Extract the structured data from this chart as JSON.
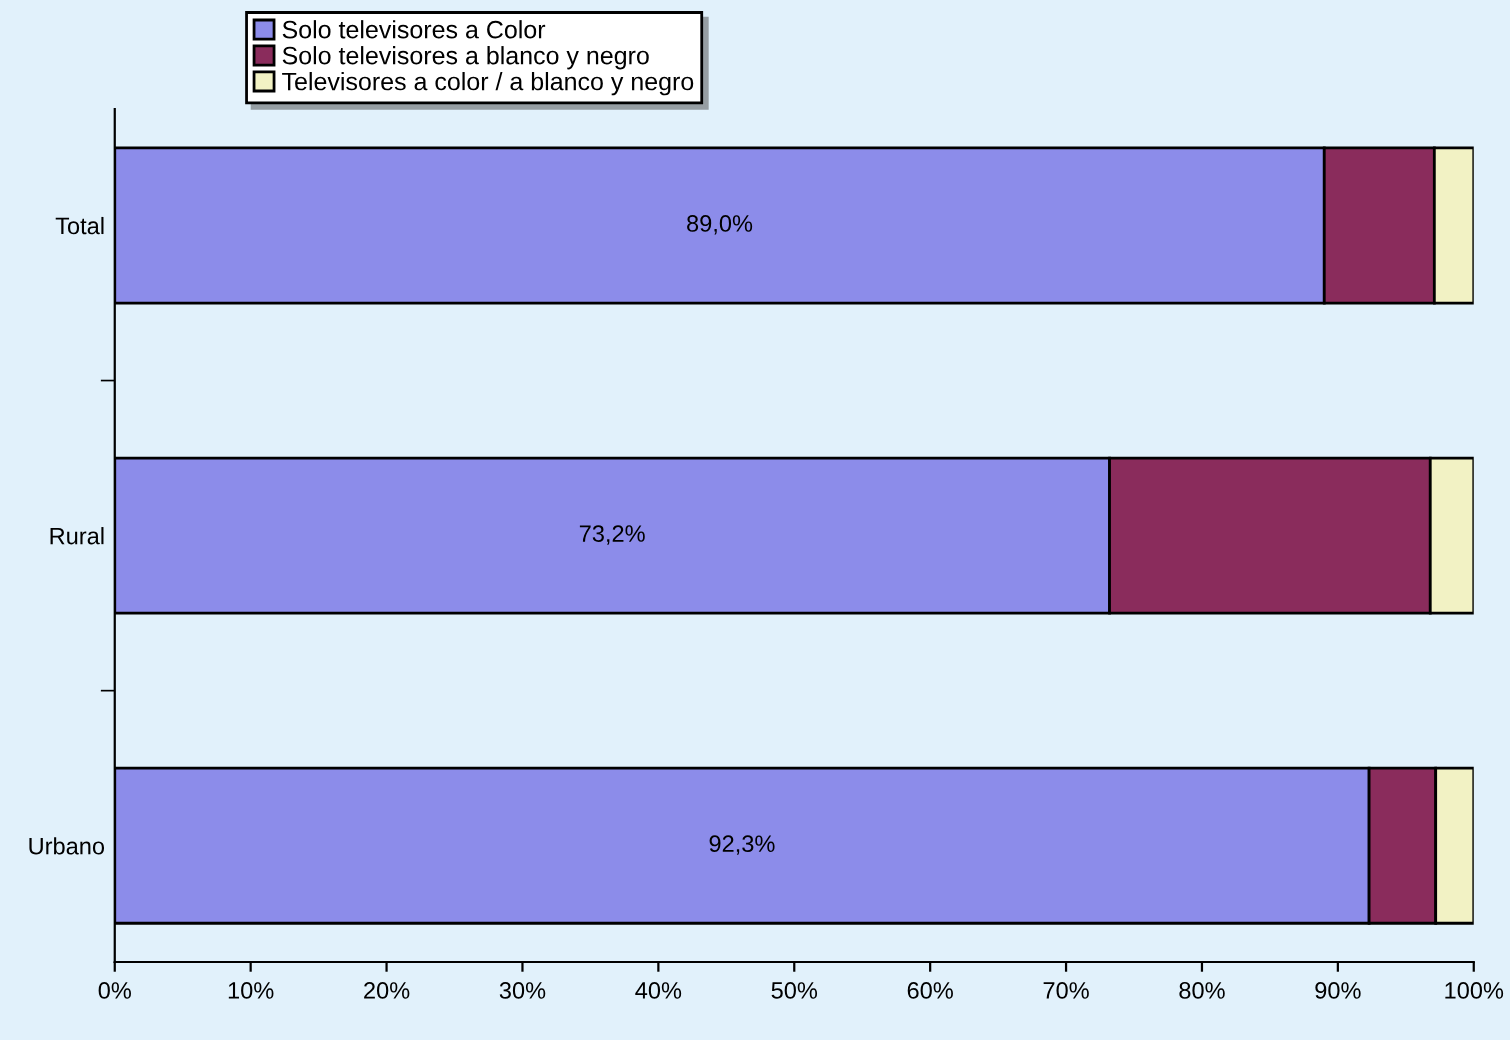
{
  "chart_data": {
    "type": "bar",
    "orientation": "horizontal",
    "stacked": true,
    "categories": [
      "Total",
      "Rural",
      "Urbano"
    ],
    "series": [
      {
        "name": "Solo televisores a Color",
        "color": "#8c8cea",
        "values": [
          89.0,
          73.2,
          92.3
        ],
        "value_labels": [
          "89,0%",
          "73,2%",
          "92,3%"
        ]
      },
      {
        "name": "Solo televisores a blanco y negro",
        "color": "#8a2c5c",
        "values": [
          8.1,
          23.6,
          4.9
        ]
      },
      {
        "name": "Televisores a color / a blanco y negro",
        "color": "#f2f2c4",
        "values": [
          2.9,
          3.2,
          2.8
        ]
      }
    ],
    "xlim": [
      0,
      100
    ],
    "xticks": [
      {
        "value": 0,
        "label": "0%"
      },
      {
        "value": 10,
        "label": "10%"
      },
      {
        "value": 20,
        "label": "20%"
      },
      {
        "value": 30,
        "label": "30%"
      },
      {
        "value": 40,
        "label": "40%"
      },
      {
        "value": 50,
        "label": "50%"
      },
      {
        "value": 60,
        "label": "60%"
      },
      {
        "value": 70,
        "label": "70%"
      },
      {
        "value": 80,
        "label": "80%"
      },
      {
        "value": 90,
        "label": "90%"
      },
      {
        "value": 100,
        "label": "100%"
      }
    ],
    "legend": "top left",
    "grid": false
  }
}
